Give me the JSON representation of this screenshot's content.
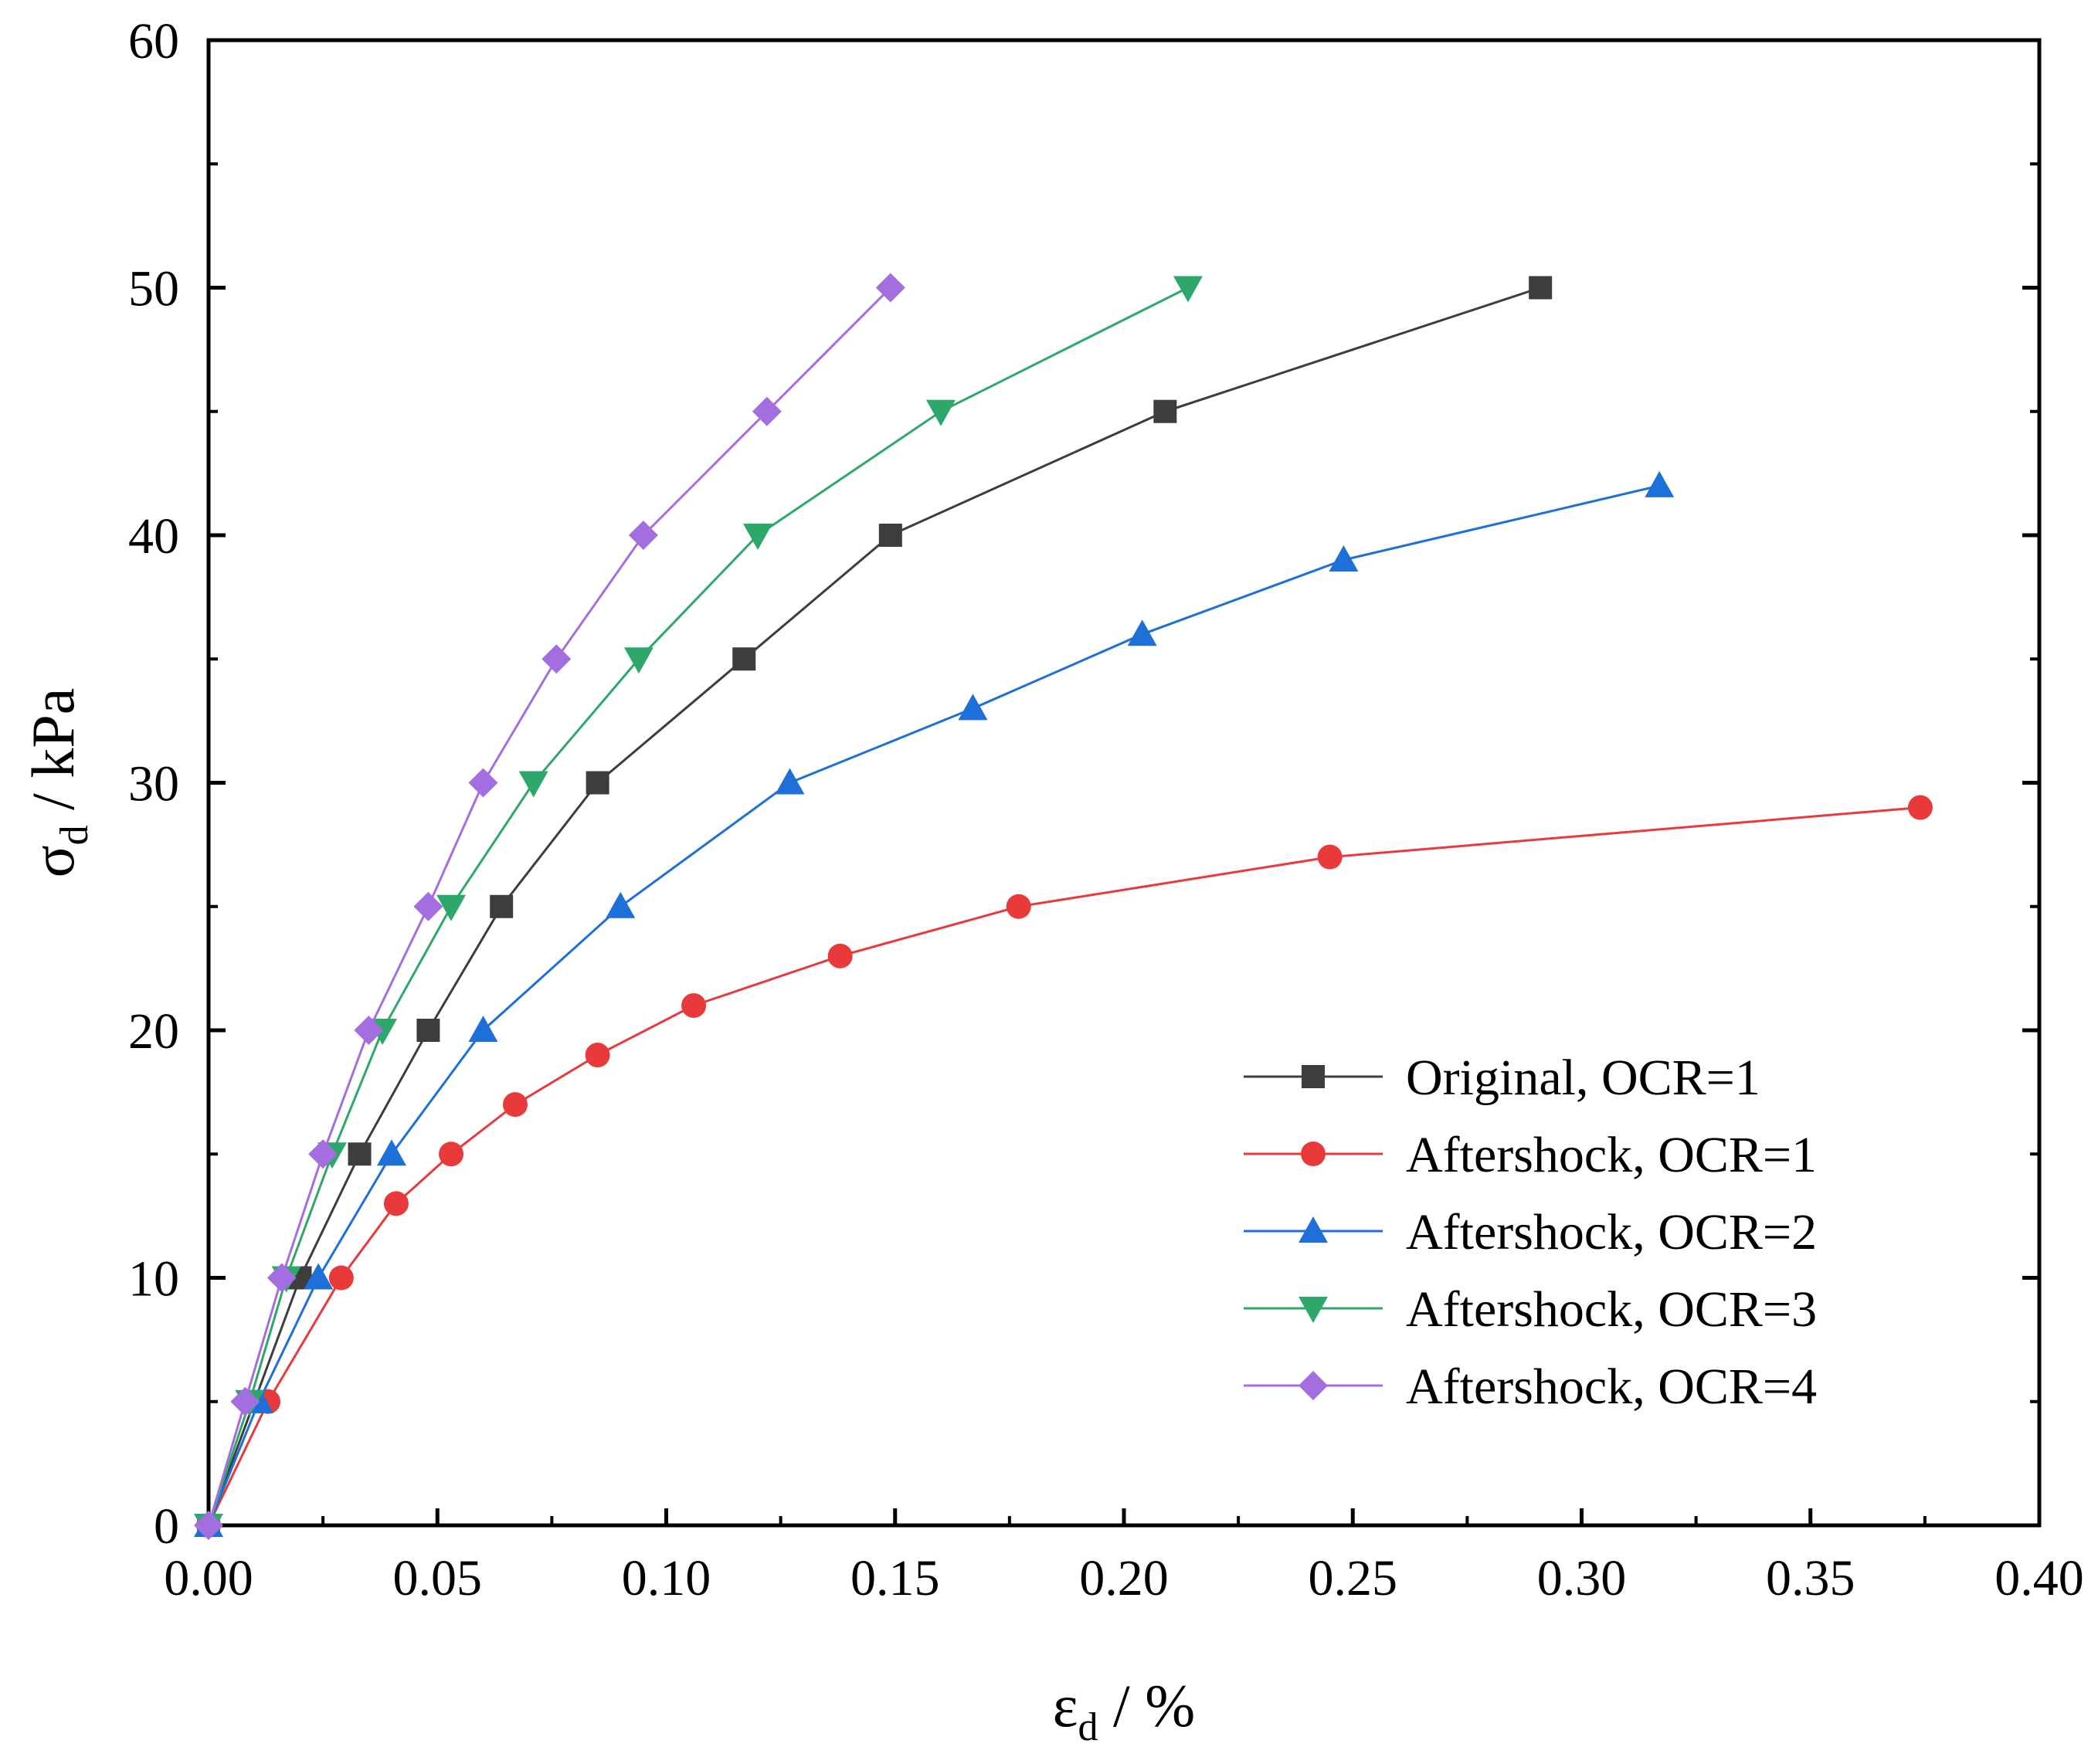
{
  "chart_data": {
    "type": "line",
    "title": "",
    "xlabel": {
      "symbol": "ε",
      "subscript": "d",
      "unit": " / %"
    },
    "ylabel": {
      "symbol": "σ",
      "subscript": "d",
      "unit": " / kPa"
    },
    "xlim": [
      0,
      0.4
    ],
    "ylim": [
      0,
      60
    ],
    "x_ticks": [
      "0.00",
      "0.05",
      "0.10",
      "0.15",
      "0.20",
      "0.25",
      "0.30",
      "0.35",
      "0.40"
    ],
    "y_ticks": [
      "0",
      "10",
      "20",
      "30",
      "40",
      "50",
      "60"
    ],
    "grid": false,
    "legend_position": "lower-right",
    "series": [
      {
        "name": "Original, OCR=1",
        "color": "#3d3d3d",
        "marker": "square",
        "x": [
          0,
          0.01,
          0.02,
          0.033,
          0.048,
          0.064,
          0.085,
          0.117,
          0.149,
          0.209,
          0.291
        ],
        "y": [
          0,
          5,
          10,
          15,
          20,
          25,
          30,
          35,
          40,
          45,
          50
        ]
      },
      {
        "name": "Aftershock, OCR=1",
        "color": "#e83a3a",
        "marker": "circle",
        "x": [
          0,
          0.013,
          0.029,
          0.041,
          0.053,
          0.067,
          0.085,
          0.106,
          0.138,
          0.177,
          0.245,
          0.374
        ],
        "y": [
          0,
          5,
          10,
          13,
          15,
          17,
          19,
          21,
          23,
          25,
          27,
          29
        ]
      },
      {
        "name": "Aftershock, OCR=2",
        "color": "#1f6fd8",
        "marker": "triangle-up",
        "x": [
          0,
          0.011,
          0.024,
          0.04,
          0.06,
          0.09,
          0.127,
          0.167,
          0.204,
          0.248,
          0.317
        ],
        "y": [
          0,
          5,
          10,
          15,
          20,
          25,
          30,
          33,
          36,
          39,
          42
        ]
      },
      {
        "name": "Aftershock, OCR=3",
        "color": "#2ea86a",
        "marker": "triangle-down",
        "x": [
          0,
          0.009,
          0.017,
          0.027,
          0.038,
          0.053,
          0.071,
          0.094,
          0.12,
          0.16,
          0.214
        ],
        "y": [
          0,
          5,
          10,
          15,
          20,
          25,
          30,
          35,
          40,
          45,
          50
        ]
      },
      {
        "name": "Aftershock, OCR=4",
        "color": "#a36ee0",
        "marker": "diamond",
        "x": [
          0,
          0.008,
          0.016,
          0.025,
          0.035,
          0.048,
          0.06,
          0.076,
          0.095,
          0.122,
          0.149
        ],
        "y": [
          0,
          5,
          10,
          15,
          20,
          25,
          30,
          35,
          40,
          45,
          50
        ]
      }
    ]
  }
}
